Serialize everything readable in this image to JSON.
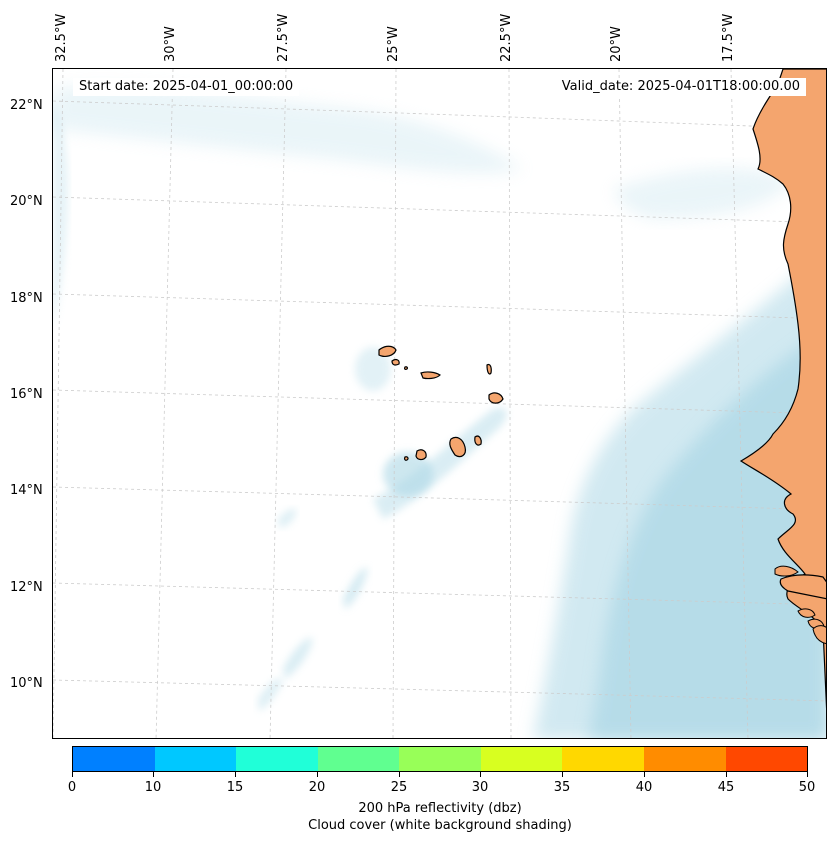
{
  "map": {
    "start_date": "Start date: 2025-04-01_00:00:00",
    "valid_date": "Valid_date: 2025-04-01T18:00:00.00",
    "lon_labels": [
      "32.5°W",
      "30°W",
      "27.5°W",
      "25°W",
      "22.5°W",
      "20°W",
      "17.5°W"
    ],
    "lat_labels": [
      "22°N",
      "20°N",
      "18°N",
      "16°N",
      "14°N",
      "12°N",
      "10°N"
    ],
    "land_color": "#f4a56e",
    "cloud_color": "#add8e6"
  },
  "colorbar": {
    "ticks": [
      "0",
      "10",
      "15",
      "20",
      "25",
      "30",
      "35",
      "40",
      "45",
      "50"
    ],
    "colors": [
      "#0080ff",
      "#00c8ff",
      "#20ffd8",
      "#60ff90",
      "#98ff58",
      "#d8ff20",
      "#ffd800",
      "#ff8c00",
      "#ff4800"
    ],
    "label_1": "200 hPa reflectivity (dbz)",
    "label_2": "Cloud cover (white background shading)"
  }
}
